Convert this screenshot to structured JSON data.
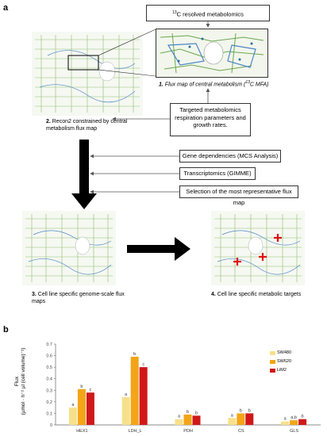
{
  "panels": {
    "a": "a",
    "b": "b"
  },
  "boxes": {
    "c13": {
      "sup": "13",
      "text": "C resolved metabolomics"
    },
    "targeted": "Targeted metabolomics respiration parameters and growth rates.",
    "gene_dep": "Gene dependencies (MCS Analysis)",
    "transcriptomics": "Transcriptomics (GIMME)",
    "selection": "Selection of the most representative flux map"
  },
  "captions": {
    "flux_map": {
      "num": "1.",
      "text": "Flux map of central metabolism (",
      "sup": "13",
      "suffix": "C MFA)"
    },
    "recon2": {
      "num": "2.",
      "text": "Recon2 constrained by central metabolism flux map"
    },
    "cell_line_gsfm": {
      "num": "3.",
      "text": "Cell line specific genome-scale flux maps"
    },
    "metabolic_targets": {
      "num": "4.",
      "text": "Cell line specific metabolic targets"
    }
  },
  "colors": {
    "sw480": "#f7e08a",
    "sw620": "#f4a418",
    "lim2": "#d01818",
    "target_marker": "#e01010",
    "map_green": "#6aa84f",
    "map_blue": "#4a86c8"
  },
  "chart_data": {
    "type": "bar",
    "ylabel": "Flux (µmol · h⁻¹ µl (cell volume)⁻¹)",
    "ylabel_line1": "Flux",
    "ylabel_line2": "(µmol · h⁻¹ µl (cell volume)⁻¹)",
    "ylim": [
      0,
      0.7
    ],
    "yticks": [
      "0",
      "0.1",
      "0.2",
      "0.3",
      "0.4",
      "0.5",
      "0.6",
      "0.7"
    ],
    "categories": [
      "HEX1",
      "LDH_L",
      "PDH",
      "CS",
      "GLS"
    ],
    "series": [
      {
        "name": "SW480",
        "values": [
          0.15,
          0.24,
          0.05,
          0.06,
          0.03
        ],
        "letters": [
          "a",
          "a",
          "a",
          "a",
          "a"
        ]
      },
      {
        "name": "SW620",
        "values": [
          0.31,
          0.59,
          0.09,
          0.1,
          0.04
        ],
        "letters": [
          "b",
          "b",
          "b",
          "b",
          "a,b"
        ]
      },
      {
        "name": "LiM2",
        "values": [
          0.28,
          0.5,
          0.08,
          0.1,
          0.05
        ],
        "letters": [
          "c",
          "c",
          "b",
          "b",
          "b"
        ]
      }
    ],
    "grid": false,
    "legend_position": "top-right"
  }
}
